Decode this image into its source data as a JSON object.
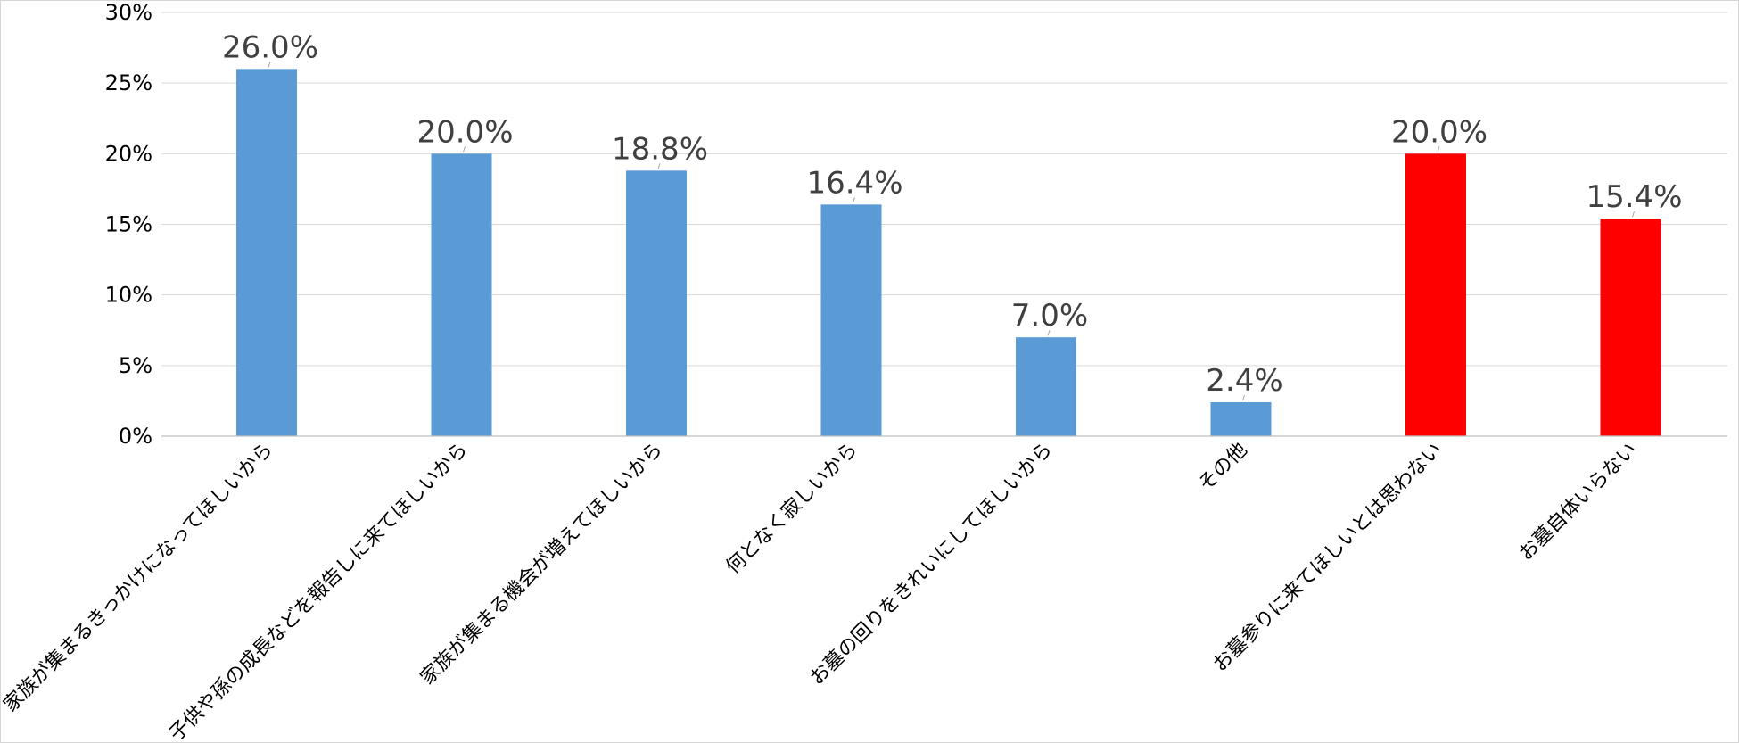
{
  "chart_data": {
    "type": "bar",
    "title": "",
    "xlabel": "",
    "ylabel": "",
    "ylim": [
      0,
      30
    ],
    "y_ticks": [
      0,
      5,
      10,
      15,
      20,
      25,
      30
    ],
    "y_tick_labels": [
      "0%",
      "5%",
      "10%",
      "15%",
      "20%",
      "25%",
      "30%"
    ],
    "grid": true,
    "legend": "none",
    "categories": [
      "家族が集まるきっかけになってほしいから",
      "子供や孫の成長などを報告しに来てほしいから",
      "家族が集まる機会が増えてほしいから",
      "何となく寂しいから",
      "お墓の回りをきれいにしてほしいから",
      "その他",
      "お墓参りに来てほしいとは思わない",
      "お墓自体いらない"
    ],
    "values": [
      26.0,
      20.0,
      18.8,
      16.4,
      7.0,
      2.4,
      20.0,
      15.4
    ],
    "data_labels": [
      "26.0%",
      "20.0%",
      "18.8%",
      "16.4%",
      "7.0%",
      "2.4%",
      "20.0%",
      "15.4%"
    ],
    "bar_colors": [
      "#5b9bd5",
      "#5b9bd5",
      "#5b9bd5",
      "#5b9bd5",
      "#5b9bd5",
      "#5b9bd5",
      "#ff0000",
      "#ff0000"
    ]
  }
}
